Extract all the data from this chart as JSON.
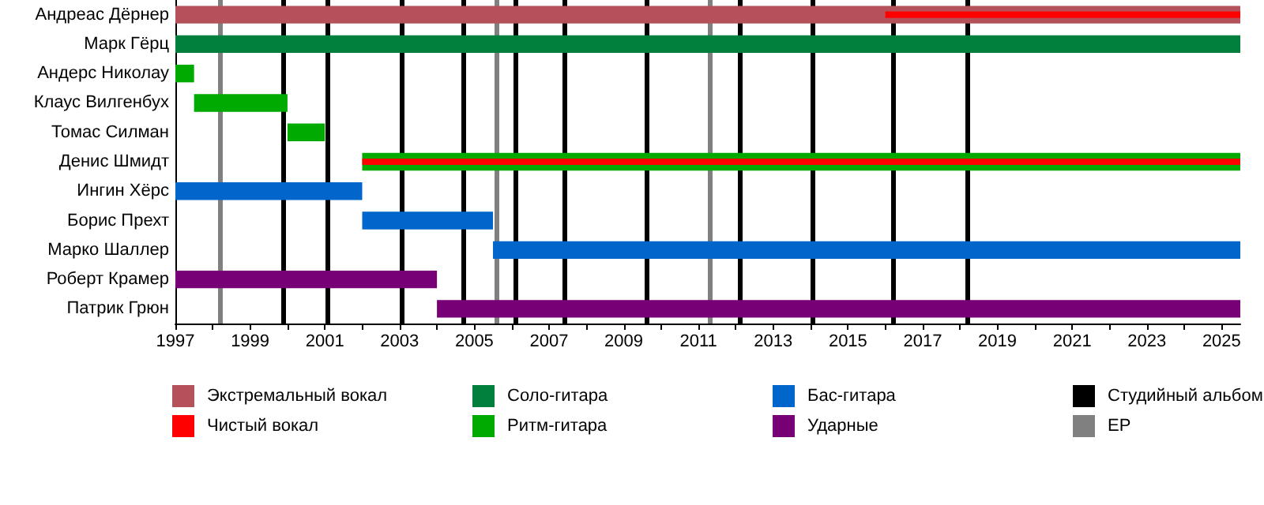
{
  "chart_data": {
    "type": "bar",
    "orientation": "horizontal",
    "legend": "bottom",
    "categories": [
      "Андреас Дёрнер",
      "Марк Гёрц",
      "Андерс Николау",
      "Клаус Вилгенбух",
      "Томас Силман",
      "Денис Шмидт",
      "Ингин Хёрс",
      "Борис Прехт",
      "Марко Шаллер",
      "Роберт Крамер",
      "Патрик Грюн"
    ],
    "series": [
      {
        "name": "Экстремальный вокал",
        "color": "#b5515a",
        "base": [
          1997,
          null,
          null,
          null,
          null,
          null,
          null,
          null,
          null,
          null,
          null
        ],
        "values": [
          28.5,
          null,
          null,
          null,
          null,
          null,
          null,
          null,
          null,
          null,
          null
        ]
      },
      {
        "name": "Чистый вокал",
        "color": "#ff0000",
        "base": [
          2016,
          null,
          null,
          null,
          null,
          2002,
          null,
          null,
          null,
          null,
          null
        ],
        "values": [
          9.5,
          null,
          null,
          null,
          null,
          23.5,
          null,
          null,
          null,
          null,
          null
        ]
      },
      {
        "name": "Соло-гитара",
        "color": "#00803c",
        "base": [
          null,
          1997,
          null,
          null,
          null,
          null,
          null,
          null,
          null,
          null,
          null
        ],
        "values": [
          null,
          28.5,
          null,
          null,
          null,
          null,
          null,
          null,
          null,
          null,
          null
        ]
      },
      {
        "name": "Ритм-гитара",
        "color": "#00aa00",
        "base": [
          null,
          null,
          1997,
          1997.5,
          2000,
          2002,
          null,
          null,
          null,
          null,
          null
        ],
        "values": [
          null,
          null,
          0.5,
          2.5,
          1,
          23.5,
          null,
          null,
          null,
          null,
          null
        ]
      },
      {
        "name": "Бас-гитара",
        "color": "#0066cc",
        "base": [
          null,
          null,
          null,
          null,
          null,
          null,
          1997,
          2002,
          2005.5,
          null,
          null
        ],
        "values": [
          null,
          null,
          null,
          null,
          null,
          null,
          5,
          3.5,
          20,
          null,
          null
        ]
      },
      {
        "name": "Ударные",
        "color": "#770077",
        "base": [
          null,
          null,
          null,
          null,
          null,
          null,
          null,
          null,
          null,
          1997,
          2004
        ],
        "values": [
          null,
          null,
          null,
          null,
          null,
          null,
          null,
          null,
          null,
          7,
          21.5
        ]
      }
    ],
    "ref_lines": [
      {
        "axis": "x",
        "value": 1999.9,
        "label": "Студийный альбом",
        "color": "#000000"
      },
      {
        "axis": "x",
        "value": 2001.05,
        "color": "#000000"
      },
      {
        "axis": "x",
        "value": 2003.05,
        "color": "#000000"
      },
      {
        "axis": "x",
        "value": 2004.7,
        "color": "#000000"
      },
      {
        "axis": "x",
        "value": 2006.1,
        "color": "#000000"
      },
      {
        "axis": "x",
        "value": 2007.4,
        "color": "#000000"
      },
      {
        "axis": "x",
        "value": 2009.6,
        "color": "#000000"
      },
      {
        "axis": "x",
        "value": 2012.1,
        "color": "#000000"
      },
      {
        "axis": "x",
        "value": 2014.05,
        "color": "#000000"
      },
      {
        "axis": "x",
        "value": 2016.2,
        "color": "#000000"
      },
      {
        "axis": "x",
        "value": 2018.2,
        "color": "#000000"
      },
      {
        "axis": "x",
        "value": 1998.2,
        "label": "EP",
        "color": "#808080"
      },
      {
        "axis": "x",
        "value": 2005.6,
        "color": "#808080"
      },
      {
        "axis": "x",
        "value": 2011.3,
        "color": "#808080"
      }
    ],
    "xlim": [
      1997,
      2025.5
    ],
    "xticks": [
      1997,
      {
        "value": 1998,
        "label": null
      },
      1999,
      {
        "value": 2000,
        "label": null
      },
      2001,
      {
        "value": 2002,
        "label": null
      },
      2003,
      {
        "value": 2004,
        "label": null
      },
      2005,
      {
        "value": 2006,
        "label": null
      },
      2007,
      {
        "value": 2008,
        "label": null
      },
      2009,
      {
        "value": 2010,
        "label": null
      },
      2011,
      {
        "value": 2012,
        "label": null
      },
      2013,
      {
        "value": 2014,
        "label": null
      },
      2015,
      {
        "value": 2016,
        "label": null
      },
      2017,
      {
        "value": 2018,
        "label": null
      },
      2019,
      {
        "value": 2020,
        "label": null
      },
      2021,
      {
        "value": 2022,
        "label": null
      },
      2023,
      {
        "value": 2024,
        "label": null
      },
      2025
    ]
  }
}
